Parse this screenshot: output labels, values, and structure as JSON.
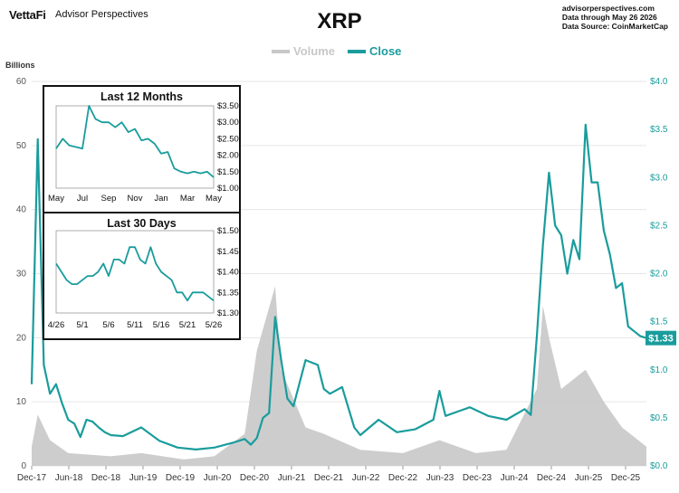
{
  "header": {
    "logo_text": "VettaFi",
    "brand": "Advisor Perspectives",
    "title": "XRP",
    "source_lines": [
      "advisorperspectives.com",
      "Data through  May 26 2026",
      "Data Source: CoinMarketCap"
    ]
  },
  "colors": {
    "close": "#1a9c9c",
    "volume": "#c8c8c8",
    "axis_text": "#555555",
    "grid": "#e6e6e6"
  },
  "chart_data": [
    {
      "id": "main",
      "type": "line",
      "legend": [
        "Volume",
        "Close"
      ],
      "legend_placement": "top-center",
      "left_axis": {
        "label": "Billions",
        "range": [
          0,
          60
        ],
        "ticks": [
          0,
          10,
          20,
          30,
          40,
          50,
          60
        ]
      },
      "right_axis": {
        "range": [
          0,
          4
        ],
        "ticks": [
          "$0.0",
          "$0.5",
          "$1.0",
          "$1.5",
          "$2.0",
          "$2.5",
          "$3.0",
          "$3.5",
          "$4.0"
        ]
      },
      "x_tick_labels": [
        "Dec-17",
        "Jun-18",
        "Dec-18",
        "Jun-19",
        "Dec-19",
        "Jun-20",
        "Dec-20",
        "Jun-21",
        "Dec-21",
        "Jun-22",
        "Dec-22",
        "Jun-23",
        "Dec-23",
        "Jun-24",
        "Dec-24",
        "Jun-25",
        "Dec-25"
      ],
      "x_range": [
        "2017-12",
        "2026-05"
      ],
      "last_label": "$1.33",
      "series": [
        {
          "name": "Close",
          "x": [
            "2017-12",
            "2018-01",
            "2018-02",
            "2018-03",
            "2018-04",
            "2018-05",
            "2018-06",
            "2018-07",
            "2018-08",
            "2018-09",
            "2018-10",
            "2018-11",
            "2018-12",
            "2019-01",
            "2019-03",
            "2019-06",
            "2019-09",
            "2019-12",
            "2020-03",
            "2020-06",
            "2020-09",
            "2020-11",
            "2020-12",
            "2021-01",
            "2021-02",
            "2021-03",
            "2021-04",
            "2021-05",
            "2021-06",
            "2021-07",
            "2021-09",
            "2021-11",
            "2021-12",
            "2022-01",
            "2022-03",
            "2022-05",
            "2022-06",
            "2022-09",
            "2022-12",
            "2023-03",
            "2023-06",
            "2023-07",
            "2023-08",
            "2023-12",
            "2024-03",
            "2024-06",
            "2024-09",
            "2024-10",
            "2024-11",
            "2024-12",
            "2025-01",
            "2025-02",
            "2025-03",
            "2025-04",
            "2025-05",
            "2025-06",
            "2025-07",
            "2025-08",
            "2025-09",
            "2025-10",
            "2025-11",
            "2025-12",
            "2026-01",
            "2026-02",
            "2026-03",
            "2026-04",
            "2026-05"
          ],
          "y": [
            0.85,
            3.4,
            1.05,
            0.75,
            0.85,
            0.65,
            0.48,
            0.44,
            0.3,
            0.48,
            0.46,
            0.4,
            0.35,
            0.32,
            0.31,
            0.4,
            0.26,
            0.19,
            0.17,
            0.19,
            0.24,
            0.28,
            0.22,
            0.29,
            0.5,
            0.55,
            1.55,
            1.1,
            0.7,
            0.62,
            1.1,
            1.05,
            0.8,
            0.75,
            0.82,
            0.4,
            0.32,
            0.48,
            0.35,
            0.38,
            0.48,
            0.78,
            0.52,
            0.61,
            0.52,
            0.48,
            0.59,
            0.53,
            1.35,
            2.3,
            3.05,
            2.5,
            2.4,
            2.0,
            2.35,
            2.15,
            3.55,
            2.95,
            2.95,
            2.45,
            2.2,
            1.85,
            1.9,
            1.45,
            1.4,
            1.35,
            1.33
          ]
        },
        {
          "name": "Volume",
          "x": [
            "2017-12",
            "2018-01",
            "2018-03",
            "2018-06",
            "2019-01",
            "2019-06",
            "2020-01",
            "2020-06",
            "2020-11",
            "2021-01",
            "2021-04",
            "2021-05",
            "2021-09",
            "2021-12",
            "2022-06",
            "2023-01",
            "2023-07",
            "2024-01",
            "2024-06",
            "2024-11",
            "2024-12",
            "2025-01",
            "2025-03",
            "2025-07",
            "2025-10",
            "2026-01",
            "2026-05"
          ],
          "y": [
            3,
            8,
            4,
            2,
            1.5,
            2,
            1,
            1.5,
            5,
            18,
            28,
            15,
            6,
            5,
            2.5,
            2,
            4,
            2,
            2.5,
            12,
            25,
            20,
            12,
            15,
            10,
            6,
            3
          ]
        }
      ]
    },
    {
      "id": "inset_12m",
      "type": "line",
      "title": "Last 12 Months",
      "y_ticks": [
        "$3.50",
        "$3.00",
        "$2.50",
        "$2.00",
        "$1.50",
        "$1.00"
      ],
      "y_range": [
        1.0,
        3.5
      ],
      "x_tick_labels": [
        "May",
        "Jul",
        "Sep",
        "Nov",
        "Jan",
        "Mar",
        "May"
      ],
      "x_range": [
        0,
        12
      ],
      "series": [
        {
          "name": "Close",
          "x": [
            0,
            0.5,
            1,
            1.5,
            2,
            2.5,
            3,
            3.5,
            4,
            4.5,
            5,
            5.5,
            6,
            6.5,
            7,
            7.5,
            8,
            8.5,
            9,
            9.5,
            10,
            10.5,
            11,
            11.5,
            12
          ],
          "y": [
            2.2,
            2.5,
            2.3,
            2.25,
            2.2,
            3.5,
            3.1,
            3.0,
            3.0,
            2.85,
            3.0,
            2.7,
            2.8,
            2.45,
            2.5,
            2.35,
            2.05,
            2.1,
            1.6,
            1.5,
            1.45,
            1.5,
            1.45,
            1.5,
            1.33
          ]
        }
      ]
    },
    {
      "id": "inset_30d",
      "type": "line",
      "title": "Last 30 Days",
      "y_ticks": [
        "$1.50",
        "$1.45",
        "$1.40",
        "$1.35",
        "$1.30"
      ],
      "y_range": [
        1.3,
        1.5
      ],
      "x_tick_labels": [
        "4/26",
        "5/1",
        "5/6",
        "5/11",
        "5/16",
        "5/21",
        "5/26"
      ],
      "x_range": [
        0,
        30
      ],
      "series": [
        {
          "name": "Close",
          "x": [
            0,
            1,
            2,
            3,
            4,
            5,
            6,
            7,
            8,
            9,
            10,
            11,
            12,
            13,
            14,
            15,
            16,
            17,
            18,
            19,
            20,
            21,
            22,
            23,
            24,
            25,
            26,
            27,
            28,
            29,
            30
          ],
          "y": [
            1.42,
            1.4,
            1.38,
            1.37,
            1.37,
            1.38,
            1.39,
            1.39,
            1.4,
            1.42,
            1.39,
            1.43,
            1.43,
            1.42,
            1.46,
            1.46,
            1.43,
            1.42,
            1.46,
            1.42,
            1.4,
            1.39,
            1.38,
            1.35,
            1.35,
            1.33,
            1.35,
            1.35,
            1.35,
            1.34,
            1.33
          ]
        }
      ]
    }
  ]
}
